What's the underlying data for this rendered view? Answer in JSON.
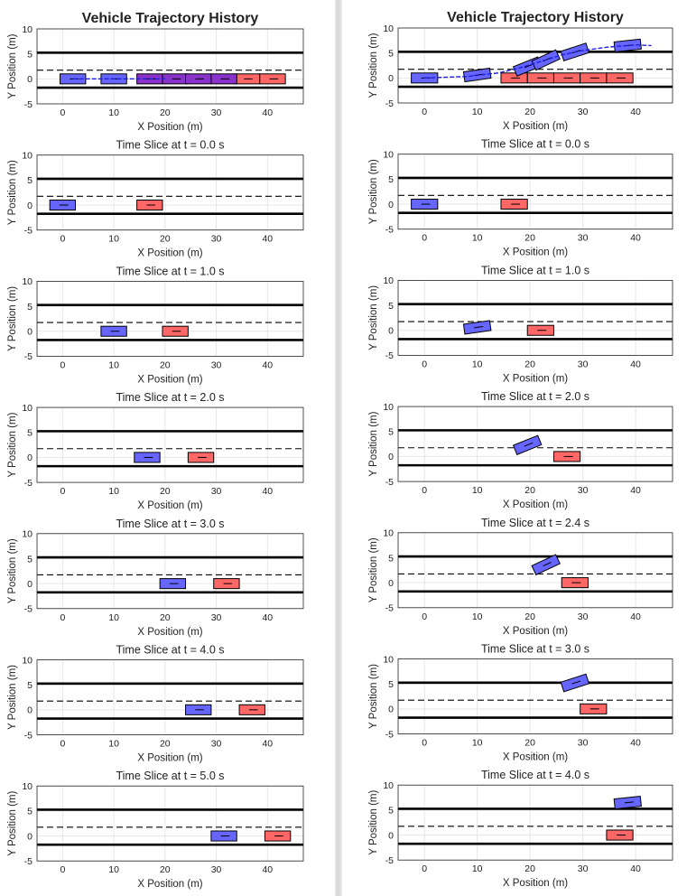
{
  "figures": [
    {
      "panels": [
        {
          "title": "Vehicle Trajectory History",
          "bold": true,
          "xlabel": "X Position (m)",
          "ylabel": "Y Position (m)",
          "ego": [
            {
              "x": 2,
              "y": 0,
              "a": 0
            },
            {
              "x": 10,
              "y": 0,
              "a": 0
            }
          ],
          "lead": [
            {
              "x": 36,
              "y": 0
            },
            {
              "x": 41,
              "y": 0
            }
          ],
          "overlap": [
            {
              "x": 17,
              "y": 0
            },
            {
              "x": 22,
              "y": 0
            },
            {
              "x": 26.5,
              "y": 0
            },
            {
              "x": 31.5,
              "y": 0
            }
          ],
          "path": [
            [
              2,
              0
            ],
            [
              20,
              0
            ]
          ]
        },
        {
          "title": "Time Slice at t = 0.0 s",
          "ego": [
            {
              "x": 0,
              "y": 0,
              "a": 0
            }
          ],
          "lead": [
            {
              "x": 17,
              "y": 0
            }
          ],
          "xlabel": "X Position (m)",
          "ylabel": "Y Position (m)"
        },
        {
          "title": "Time Slice at t = 1.0 s",
          "ego": [
            {
              "x": 10,
              "y": 0,
              "a": 0
            }
          ],
          "lead": [
            {
              "x": 22,
              "y": 0
            }
          ],
          "xlabel": "X Position (m)",
          "ylabel": "Y Position (m)"
        },
        {
          "title": "Time Slice at t = 2.0 s",
          "ego": [
            {
              "x": 16.5,
              "y": 0,
              "a": 0
            }
          ],
          "lead": [
            {
              "x": 27,
              "y": 0
            }
          ],
          "xlabel": "X Position (m)",
          "ylabel": "Y Position (m)"
        },
        {
          "title": "Time Slice at t = 3.0 s",
          "ego": [
            {
              "x": 21.5,
              "y": 0,
              "a": 0
            }
          ],
          "lead": [
            {
              "x": 32,
              "y": 0
            }
          ],
          "xlabel": "X Position (m)",
          "ylabel": "Y Position (m)"
        },
        {
          "title": "Time Slice at t = 4.0 s",
          "ego": [
            {
              "x": 26.5,
              "y": 0,
              "a": 0
            }
          ],
          "lead": [
            {
              "x": 37,
              "y": 0
            }
          ],
          "xlabel": "X Position (m)",
          "ylabel": "Y Position (m)"
        },
        {
          "title": "Time Slice at t = 5.0 s",
          "ego": [
            {
              "x": 31.5,
              "y": 0,
              "a": 0
            }
          ],
          "lead": [
            {
              "x": 42,
              "y": 0
            }
          ],
          "xlabel": "X Position (m)",
          "ylabel": "Y Position (m)"
        }
      ]
    },
    {
      "panels": [
        {
          "title": "Vehicle Trajectory History",
          "bold": true,
          "xlabel": "X Position (m)",
          "ylabel": "Y Position (m)",
          "ego": [
            {
              "x": 0,
              "y": 0,
              "a": 0
            },
            {
              "x": 10,
              "y": 0.6,
              "a": 8
            },
            {
              "x": 19.5,
              "y": 2.3,
              "a": 22
            },
            {
              "x": 23,
              "y": 3.6,
              "a": 25
            },
            {
              "x": 28.5,
              "y": 5.2,
              "a": 18
            },
            {
              "x": 38.5,
              "y": 6.5,
              "a": 6
            }
          ],
          "lead": [
            {
              "x": 17,
              "y": 0
            },
            {
              "x": 22,
              "y": 0
            },
            {
              "x": 27,
              "y": 0
            },
            {
              "x": 32,
              "y": 0
            },
            {
              "x": 37,
              "y": 0
            }
          ],
          "overlap": [],
          "path": [
            [
              0,
              0
            ],
            [
              8,
              0.3
            ],
            [
              14,
              1.0
            ],
            [
              18,
              2.0
            ],
            [
              22,
              3.3
            ],
            [
              26,
              4.6
            ],
            [
              30,
              5.5
            ],
            [
              35,
              6.2
            ],
            [
              40,
              6.6
            ],
            [
              43,
              6.5
            ]
          ]
        },
        {
          "title": "Time Slice at t = 0.0 s",
          "ego": [
            {
              "x": 0,
              "y": 0,
              "a": 0
            }
          ],
          "lead": [
            {
              "x": 17,
              "y": 0
            }
          ],
          "xlabel": "X Position (m)",
          "ylabel": "Y Position (m)"
        },
        {
          "title": "Time Slice at t = 1.0 s",
          "ego": [
            {
              "x": 10,
              "y": 0.6,
              "a": 8
            }
          ],
          "lead": [
            {
              "x": 22,
              "y": 0
            }
          ],
          "xlabel": "X Position (m)",
          "ylabel": "Y Position (m)"
        },
        {
          "title": "Time Slice at t = 2.0 s",
          "ego": [
            {
              "x": 19.5,
              "y": 2.3,
              "a": 22
            }
          ],
          "lead": [
            {
              "x": 27,
              "y": 0
            }
          ],
          "xlabel": "X Position (m)",
          "ylabel": "Y Position (m)"
        },
        {
          "title": "Time Slice at t = 2.4 s",
          "ego": [
            {
              "x": 23,
              "y": 3.6,
              "a": 25
            }
          ],
          "lead": [
            {
              "x": 28.5,
              "y": 0
            }
          ],
          "xlabel": "X Position (m)",
          "ylabel": "Y Position (m)"
        },
        {
          "title": "Time Slice at t = 3.0 s",
          "ego": [
            {
              "x": 28.5,
              "y": 5.2,
              "a": 18
            }
          ],
          "lead": [
            {
              "x": 32,
              "y": 0
            }
          ],
          "xlabel": "X Position (m)",
          "ylabel": "Y Position (m)"
        },
        {
          "title": "Time Slice at t = 4.0 s",
          "ego": [
            {
              "x": 38.5,
              "y": 6.5,
              "a": 6
            }
          ],
          "lead": [
            {
              "x": 37,
              "y": 0
            }
          ],
          "xlabel": "X Position (m)",
          "ylabel": "Y Position (m)"
        }
      ]
    }
  ],
  "chart_data": {
    "type": "scatter",
    "xlim": [
      -5,
      47
    ],
    "ylim": [
      -5,
      10
    ],
    "xticks": [
      0,
      10,
      20,
      30,
      40
    ],
    "yticks": [
      -5,
      0,
      5,
      10
    ],
    "lane_lines": {
      "solid": [
        -1.75,
        5.25
      ],
      "dashed": [
        1.75
      ]
    },
    "vehicle_size": {
      "length": 5,
      "width": 2
    },
    "grid": true,
    "colors": {
      "ego": "#6666ff",
      "lead": "#ff6666",
      "overlap": "#8a33cc",
      "path": "#1f1fdd",
      "edge": "#000000"
    }
  }
}
